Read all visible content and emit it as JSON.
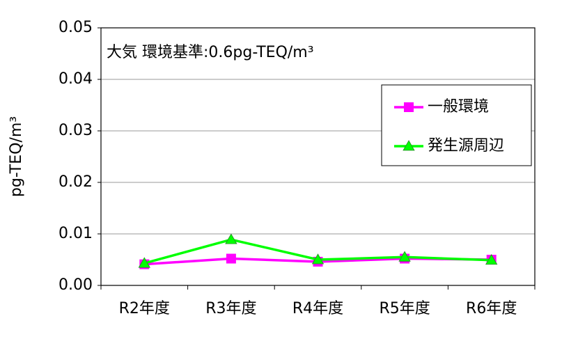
{
  "chart_data": {
    "type": "line",
    "annotation": "大気  環境基準:0.6pg-TEQ/m³",
    "y_label": "pg-TEQ/m³",
    "categories": [
      "R2年度",
      "R3年度",
      "R4年度",
      "R5年度",
      "R6年度"
    ],
    "series": [
      {
        "name": "一般環境",
        "color": "#ff00ff",
        "marker": "square",
        "values": [
          0.0041,
          0.0052,
          0.0046,
          0.0052,
          0.005
        ]
      },
      {
        "name": "発生源周辺",
        "color": "#00ff00",
        "marker": "triangle",
        "values": [
          0.0043,
          0.0089,
          0.005,
          0.0055,
          0.0049
        ]
      }
    ],
    "ylim": [
      0,
      0.05
    ],
    "yticks": [
      {
        "value": 0,
        "label": "0.00"
      },
      0.01,
      0.02,
      0.03,
      0.04,
      0.05
    ],
    "grid": true,
    "legend": "upper right"
  }
}
